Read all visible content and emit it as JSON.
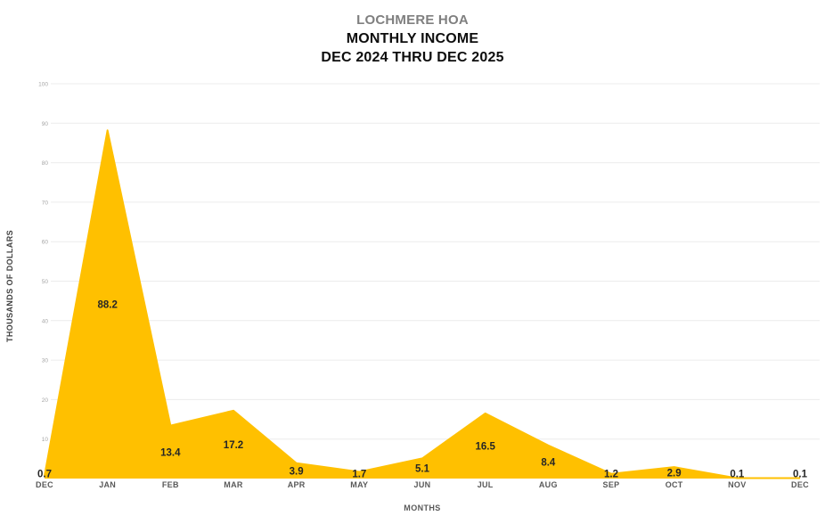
{
  "title": {
    "line1": "LOCHMERE HOA",
    "line2": "MONTHLY INCOME",
    "line3": "DEC 2024 THRU DEC 2025"
  },
  "chart_data": {
    "type": "area",
    "title": "LOCHMERE HOA MONTHLY INCOME DEC 2024 THRU DEC 2025",
    "categories": [
      "DEC",
      "JAN",
      "FEB",
      "MAR",
      "APR",
      "MAY",
      "JUN",
      "JUL",
      "AUG",
      "SEP",
      "OCT",
      "NOV",
      "DEC"
    ],
    "values": [
      0.7,
      88.2,
      13.4,
      17.2,
      3.9,
      1.7,
      5.1,
      16.5,
      8.4,
      1.2,
      2.9,
      0.1,
      0.1
    ],
    "data_labels": [
      "0.7",
      "88.2",
      "13.4",
      "17.2",
      "3.9",
      "1.7",
      "5.1",
      "16.5",
      "8.4",
      "1.2",
      "2.9",
      "0.1",
      "0.1"
    ],
    "xlabel": "MONTHS",
    "ylabel": "THOUSANDS OF DOLLARS",
    "ylim": [
      0,
      100
    ],
    "yticks": [
      10,
      20,
      30,
      40,
      50,
      60,
      70,
      80,
      90,
      100
    ],
    "grid": true,
    "legend": "none",
    "colors": {
      "area_fill": "#FFC000",
      "gridline": "#ececec",
      "ytick_text": "#a6a6a6",
      "xtick_text": "#595959",
      "data_label_text": "#262626",
      "title_sub": "#7f7f7f",
      "title_main": "#0d0d0d"
    }
  }
}
